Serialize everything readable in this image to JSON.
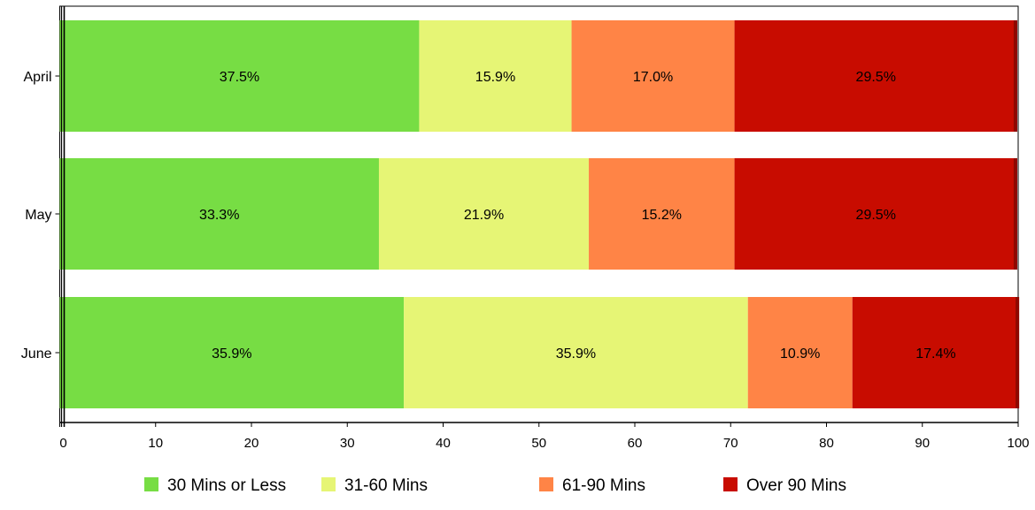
{
  "chart_data": {
    "type": "bar",
    "orientation": "horizontal",
    "stacked": true,
    "categories": [
      "April",
      "May",
      "June"
    ],
    "series": [
      {
        "name": "30 Mins or Less",
        "color": "#77DD44",
        "values": [
          37.5,
          33.3,
          35.9
        ],
        "labels": [
          "37.5%",
          "33.3%",
          "35.9%"
        ]
      },
      {
        "name": "31-60 Mins",
        "color": "#E6F575",
        "values": [
          15.9,
          21.9,
          35.9
        ],
        "labels": [
          "15.9%",
          "21.9%",
          "35.9%"
        ]
      },
      {
        "name": "61-90 Mins",
        "color": "#FF8446",
        "values": [
          17.0,
          15.2,
          10.9
        ],
        "labels": [
          "17.0%",
          "15.2%",
          "10.9%"
        ]
      },
      {
        "name": "Over 90 Mins",
        "color": "#C80C00",
        "values": [
          29.5,
          29.5,
          17.4
        ],
        "labels": [
          "29.5%",
          "29.5%",
          "17.4%"
        ]
      }
    ],
    "x_ticks": [
      0,
      10,
      20,
      30,
      40,
      50,
      60,
      70,
      80,
      90,
      100
    ],
    "xlim": [
      0,
      100
    ],
    "title": "",
    "xlabel": "",
    "ylabel": "",
    "grid": false,
    "legend_position": "bottom"
  }
}
